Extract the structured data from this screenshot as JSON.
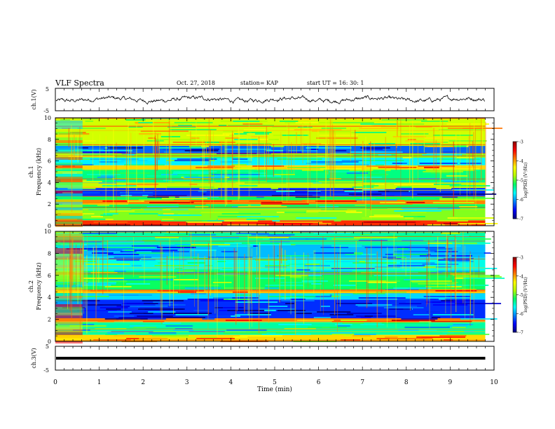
{
  "header": {
    "title": "VLF Spectra",
    "date": "Oct. 27, 2018",
    "station": "station= KAP",
    "start": "start  UT =   16: 30: 1"
  },
  "chart_data": [
    {
      "type": "line",
      "panel": "ch1-waveform",
      "ylabel": "ch.1(V)",
      "yticks": [
        "5",
        "-5"
      ],
      "ylim": [
        -5,
        5
      ],
      "x_range": [
        0,
        9.8
      ],
      "series": [
        {
          "values_desc": "noisy waveform around 0 V, amplitude about 1-2 V"
        }
      ]
    },
    {
      "type": "heatmap",
      "panel": "ch1-spectrogram",
      "ylabel": "ch.1\nFrequency (kHz)",
      "ylabel_lines": [
        "ch.1",
        "Frequency (kHz)"
      ],
      "yticks": [
        "0",
        "2",
        "4",
        "6",
        "8",
        "10"
      ],
      "ylim": [
        0,
        10
      ],
      "xlim": [
        0,
        10
      ],
      "data_x_end": 9.8,
      "colorbar": {
        "label": "log(PSD) (V²/Hz)",
        "ticks": [
          "-3",
          "-4",
          "-5",
          "-6",
          "-7"
        ],
        "range": [
          -7,
          -3
        ]
      },
      "bands": [
        {
          "f": [
            0.0,
            0.5
          ],
          "level": -3.6
        },
        {
          "f": [
            0.5,
            1.6
          ],
          "level": -4.9
        },
        {
          "f": [
            1.6,
            2.0
          ],
          "level": -5.2
        },
        {
          "f": [
            2.0,
            2.4
          ],
          "level": -3.9
        },
        {
          "f": [
            2.4,
            2.7
          ],
          "level": -5.2
        },
        {
          "f": [
            2.7,
            3.5
          ],
          "level": -6.4
        },
        {
          "f": [
            3.5,
            4.0
          ],
          "level": -4.7
        },
        {
          "f": [
            4.0,
            5.2
          ],
          "level": -5.3
        },
        {
          "f": [
            5.2,
            5.6
          ],
          "level": -4.2
        },
        {
          "f": [
            5.6,
            6.3
          ],
          "level": -5.7
        },
        {
          "f": [
            6.3,
            6.7
          ],
          "level": -4.9
        },
        {
          "f": [
            6.7,
            7.4
          ],
          "level": -6.2
        },
        {
          "f": [
            7.4,
            10.0
          ],
          "level": -4.6
        }
      ]
    },
    {
      "type": "heatmap",
      "panel": "ch2-spectrogram",
      "ylabel": "ch.2\nFrequency (kHz)",
      "ylabel_lines": [
        "ch.2",
        "Frequency (kHz)"
      ],
      "yticks": [
        "0",
        "2",
        "4",
        "6",
        "8",
        "10"
      ],
      "ylim": [
        0,
        10
      ],
      "xlim": [
        0,
        10
      ],
      "data_x_end": 9.8,
      "colorbar": {
        "label": "log(PSD) (V²/Hz)",
        "ticks": [
          "-3",
          "-4",
          "-5",
          "-6",
          "-7"
        ],
        "range": [
          -7,
          -3
        ]
      },
      "bands": [
        {
          "f": [
            0.0,
            0.6
          ],
          "level": -4.2
        },
        {
          "f": [
            0.6,
            1.8
          ],
          "level": -5.4
        },
        {
          "f": [
            1.8,
            2.1
          ],
          "level": -3.9
        },
        {
          "f": [
            2.1,
            3.8
          ],
          "level": -6.4
        },
        {
          "f": [
            3.8,
            4.4
          ],
          "level": -5.8
        },
        {
          "f": [
            4.4,
            4.7
          ],
          "level": -4.2
        },
        {
          "f": [
            4.7,
            6.4
          ],
          "level": -5.2
        },
        {
          "f": [
            6.4,
            7.6
          ],
          "level": -5.6
        },
        {
          "f": [
            7.6,
            8.8
          ],
          "level": -5.9
        },
        {
          "f": [
            8.8,
            10.0
          ],
          "level": -5.4
        }
      ]
    },
    {
      "type": "line",
      "panel": "ch3-waveform",
      "ylabel": "ch.3(V)",
      "yticks": [
        "5",
        "-5"
      ],
      "ylim": [
        -5,
        5
      ],
      "xlabel": "Time (min)",
      "xticks": [
        "0",
        "1",
        "2",
        "3",
        "4",
        "5",
        "6",
        "7",
        "8",
        "9",
        "10"
      ],
      "xlim": [
        0,
        10
      ],
      "series": [
        {
          "values_desc": "flat thick line at 0 V from 0 to 9.8 min"
        }
      ]
    }
  ],
  "colors": {
    "scale": [
      "#00007a",
      "#0000ff",
      "#0080ff",
      "#00ffff",
      "#00ff66",
      "#b4ff00",
      "#ffff00",
      "#ff8000",
      "#ff0000",
      "#8b0000"
    ]
  }
}
